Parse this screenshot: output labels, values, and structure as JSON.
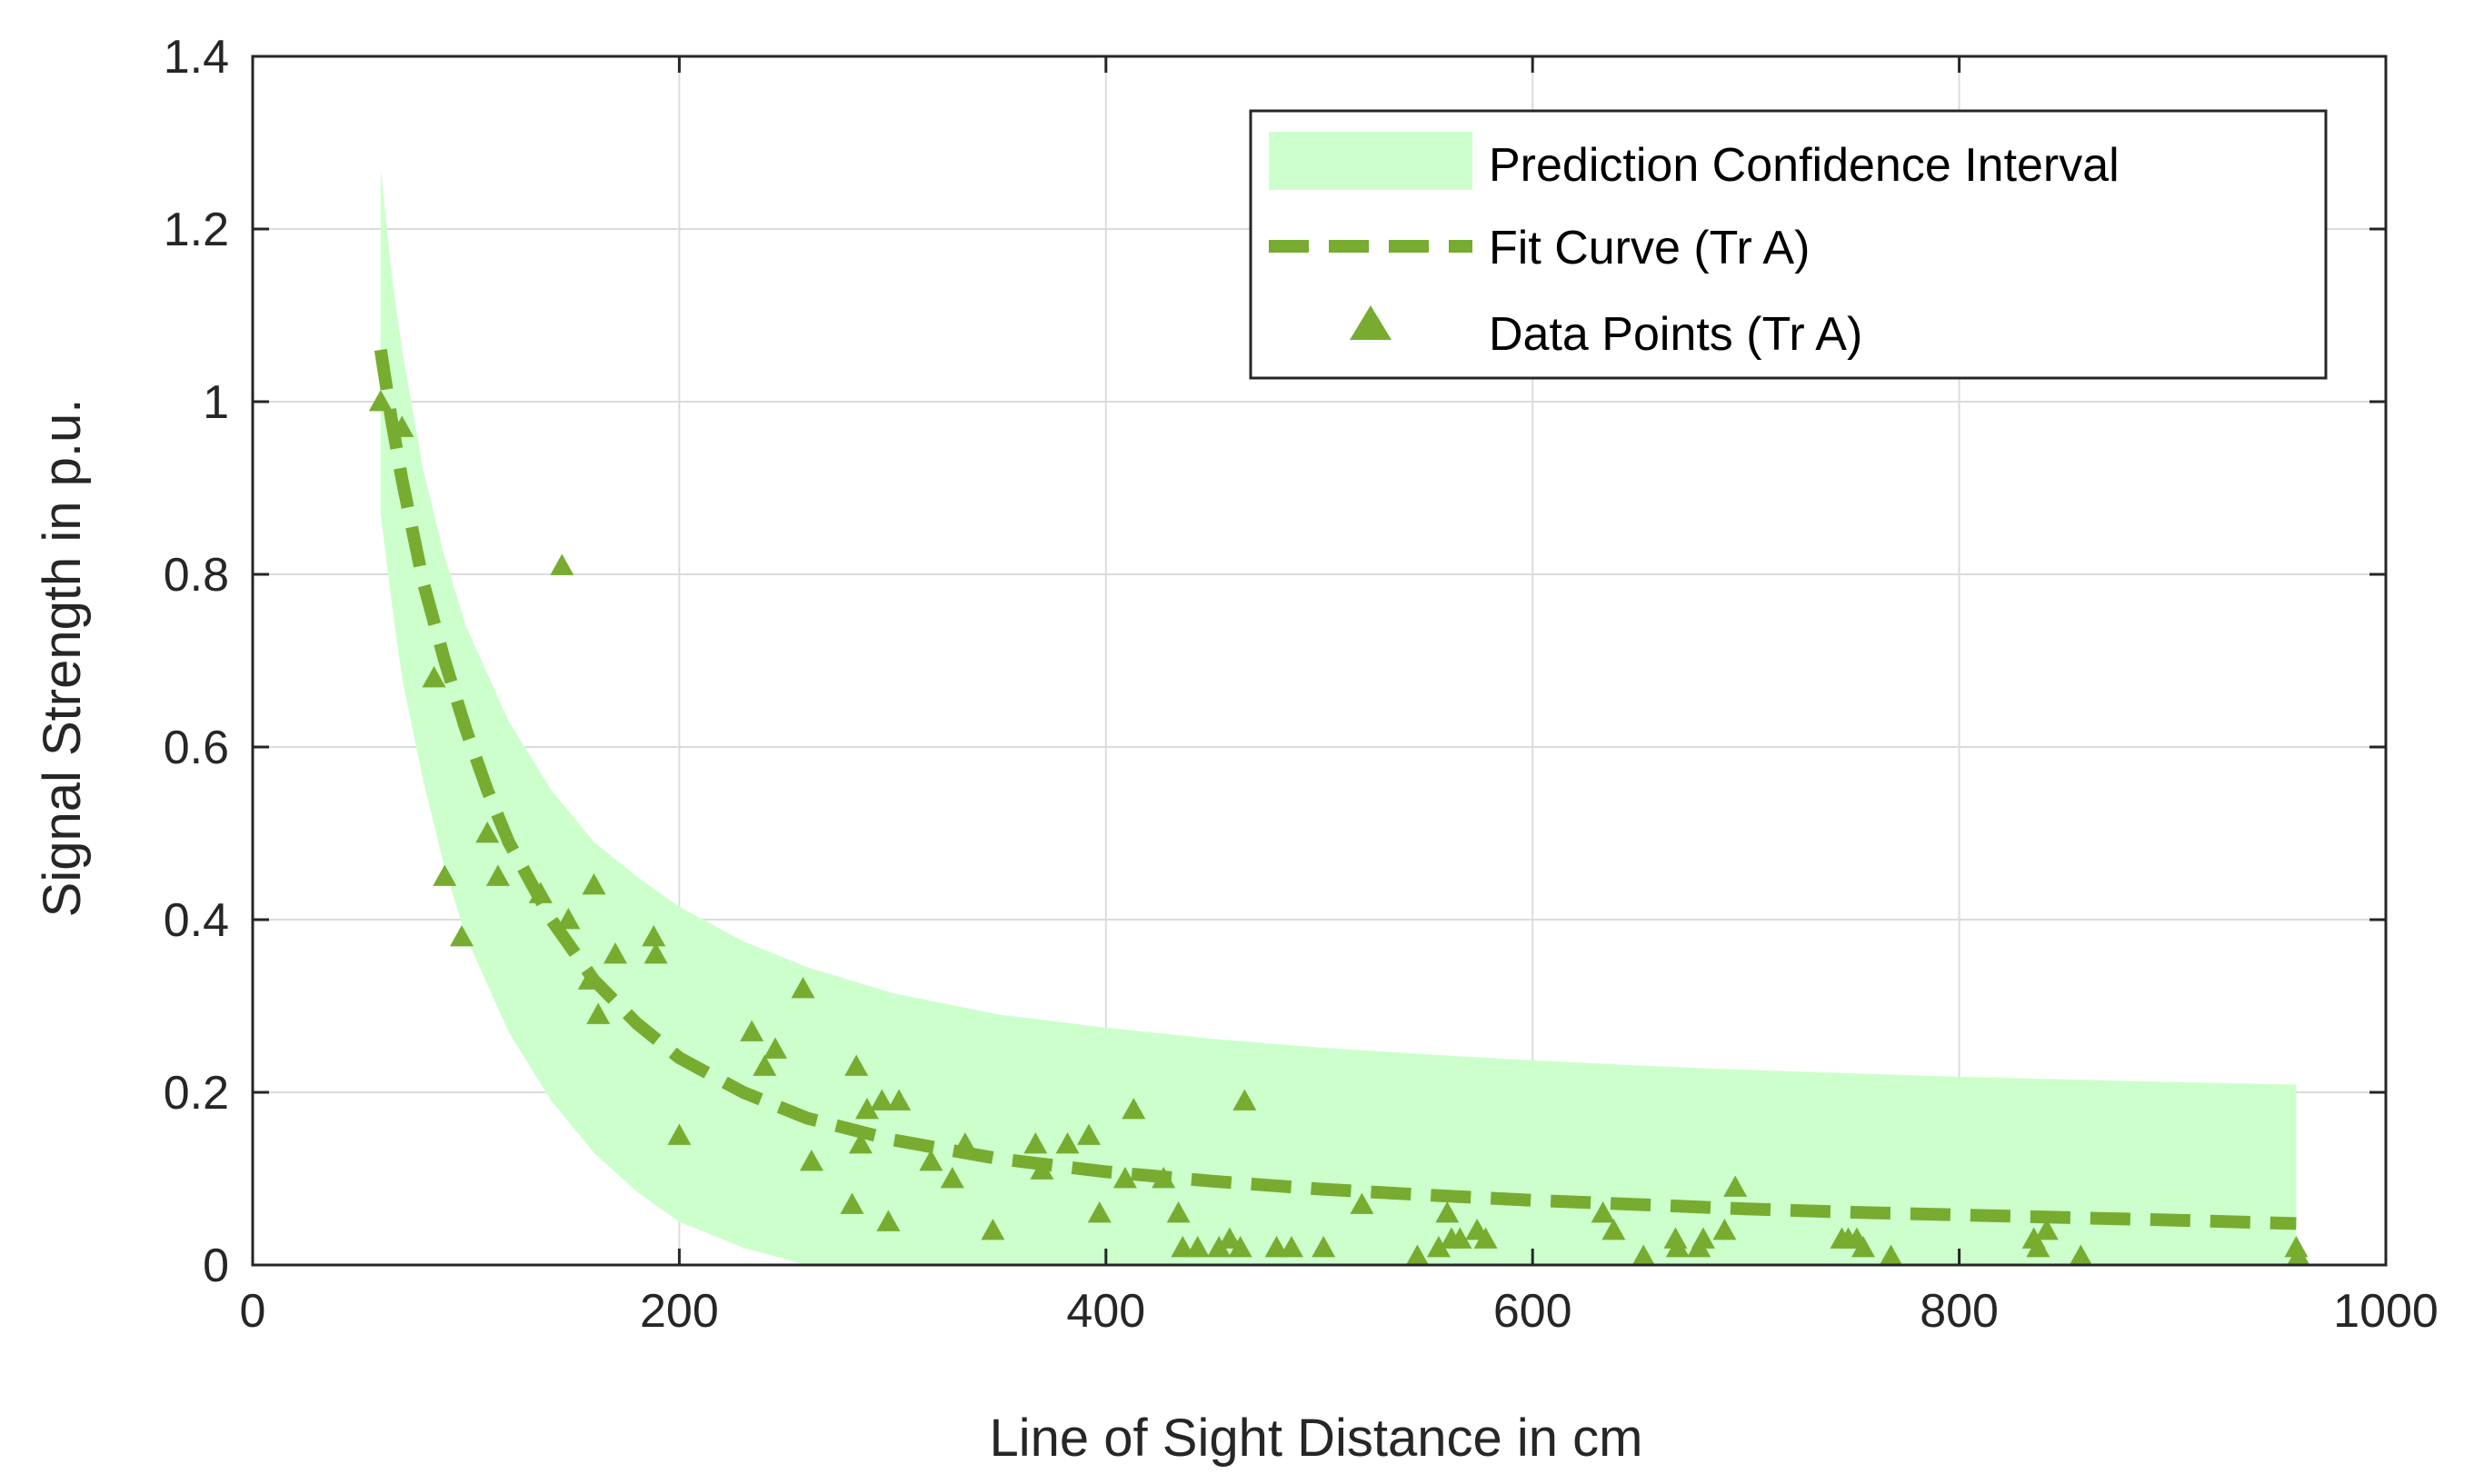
{
  "chart_data": {
    "type": "scatter",
    "title": "",
    "xlabel": "Line of Sight Distance in cm",
    "ylabel": "Signal Strength in p.u.",
    "xlim": [
      0,
      1000
    ],
    "ylim": [
      0,
      1.4
    ],
    "xticks": [
      0,
      200,
      400,
      600,
      800,
      1000
    ],
    "yticks": [
      0,
      0.2,
      0.4,
      0.6,
      0.8,
      1,
      1.2,
      1.4
    ],
    "xtick_labels": [
      "0",
      "200",
      "400",
      "600",
      "800",
      "1000"
    ],
    "ytick_labels": [
      "0",
      "0.2",
      "0.4",
      "0.6",
      "0.8",
      "1",
      "1.2",
      "1.4"
    ],
    "grid": true,
    "legend_position": "top-right",
    "colors": {
      "band": "#ccffcc",
      "series": "#77ac30",
      "axis": "#262626",
      "grid": "#dcdcdc"
    },
    "series": [
      {
        "name": "Prediction Confidence Interval",
        "kind": "band",
        "x": [
          60,
          65,
          70,
          80,
          90,
          100,
          120,
          140,
          160,
          180,
          200,
          230,
          260,
          300,
          350,
          400,
          450,
          500,
          550,
          600,
          650,
          700,
          750,
          800,
          850,
          900,
          958
        ],
        "upper": [
          1.27,
          1.15,
          1.06,
          0.92,
          0.82,
          0.74,
          0.63,
          0.55,
          0.49,
          0.45,
          0.415,
          0.375,
          0.345,
          0.315,
          0.29,
          0.275,
          0.262,
          0.252,
          0.244,
          0.237,
          0.231,
          0.226,
          0.222,
          0.218,
          0.215,
          0.212,
          0.209
        ],
        "lower": [
          0.87,
          0.77,
          0.68,
          0.56,
          0.46,
          0.38,
          0.27,
          0.19,
          0.13,
          0.085,
          0.05,
          0.02,
          0.0,
          0.0,
          0.0,
          0.0,
          0.0,
          0.0,
          0.0,
          0.0,
          0.0,
          0.0,
          0.0,
          0.0,
          0.0,
          0.0,
          0.0
        ]
      },
      {
        "name": "Fit Curve (Tr A)",
        "kind": "line",
        "x": [
          60,
          65,
          70,
          75,
          80,
          90,
          100,
          110,
          120,
          140,
          160,
          180,
          200,
          230,
          260,
          300,
          350,
          400,
          450,
          500,
          550,
          600,
          650,
          700,
          750,
          800,
          850,
          900,
          958
        ],
        "values": [
          1.06,
          0.98,
          0.91,
          0.85,
          0.79,
          0.7,
          0.62,
          0.55,
          0.49,
          0.4,
          0.33,
          0.28,
          0.24,
          0.2,
          0.17,
          0.145,
          0.123,
          0.108,
          0.097,
          0.088,
          0.081,
          0.075,
          0.07,
          0.065,
          0.061,
          0.058,
          0.055,
          0.052,
          0.048
        ]
      },
      {
        "name": "Data Points (Tr A)",
        "kind": "scatter",
        "x": [
          60,
          70,
          85,
          90,
          98,
          110,
          115,
          135,
          145,
          148,
          158,
          160,
          162,
          170,
          188,
          189,
          200,
          234,
          240,
          245,
          258,
          262,
          281,
          283,
          285,
          288,
          295,
          298,
          303,
          318,
          328,
          334,
          347,
          367,
          370,
          382,
          392,
          397,
          409,
          413,
          427,
          434,
          436,
          443,
          453,
          458,
          463,
          465,
          480,
          487,
          502,
          520,
          546,
          556,
          560,
          562,
          566,
          574,
          578,
          633,
          638,
          652,
          667,
          668,
          678,
          680,
          690,
          695,
          745,
          748,
          752,
          755,
          768,
          835,
          837,
          841,
          857,
          958,
          959
        ],
        "values": [
          1.0,
          0.97,
          0.68,
          0.45,
          0.38,
          0.5,
          0.45,
          0.43,
          0.81,
          0.4,
          0.33,
          0.44,
          0.29,
          0.36,
          0.38,
          0.36,
          0.15,
          0.27,
          0.23,
          0.25,
          0.32,
          0.12,
          0.07,
          0.23,
          0.14,
          0.18,
          0.19,
          0.05,
          0.19,
          0.12,
          0.1,
          0.14,
          0.04,
          0.14,
          0.11,
          0.14,
          0.15,
          0.06,
          0.1,
          0.18,
          0.1,
          0.06,
          0.02,
          0.02,
          0.02,
          0.03,
          0.02,
          0.19,
          0.02,
          0.02,
          0.02,
          0.07,
          0.01,
          0.02,
          0.06,
          0.03,
          0.03,
          0.04,
          0.03,
          0.06,
          0.04,
          0.01,
          0.03,
          0.02,
          0.02,
          0.03,
          0.04,
          0.09,
          0.03,
          0.03,
          0.03,
          0.02,
          0.01,
          0.03,
          0.02,
          0.04,
          0.01,
          0.02,
          0.01
        ]
      }
    ]
  }
}
